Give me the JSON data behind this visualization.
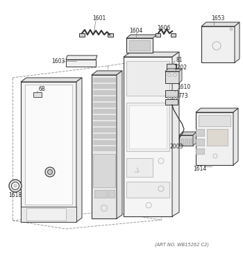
{
  "bg_color": "#ffffff",
  "art_no_text": "(ART NO. WB15262 C2)",
  "lc": "#aaaaaa",
  "dc": "#555555",
  "mc": "#333333"
}
